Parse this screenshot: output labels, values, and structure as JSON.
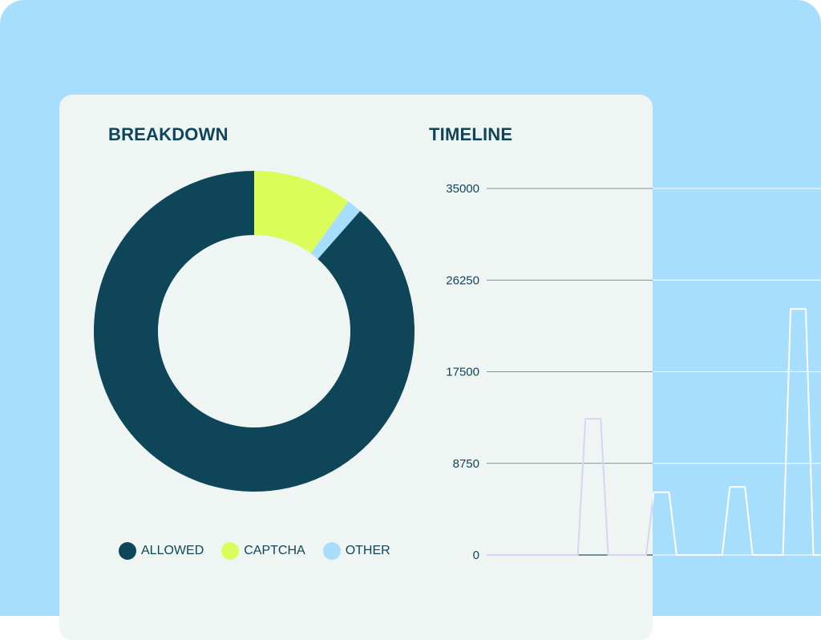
{
  "colors": {
    "frame_bg": "#a7defd",
    "card_bg": "#eff5f3",
    "dark": "#0f4559",
    "allowed": "#0f4559",
    "captcha": "#dbfd5a",
    "other": "#a7defd",
    "line_on_card": "#d9d3f5",
    "line_on_bg": "#ffffff"
  },
  "breakdown": {
    "title": "BREAKDOWN"
  },
  "timeline": {
    "title": "TIMELINE"
  },
  "chart_data": [
    {
      "type": "pie",
      "title": "BREAKDOWN",
      "donut": true,
      "labels": [
        "ALLOWED",
        "CAPTCHA",
        "OTHER"
      ],
      "values": [
        88.5,
        10.0,
        1.5
      ],
      "colors": [
        "#0f4559",
        "#dbfd5a",
        "#a7defd"
      ],
      "legend_position": "bottom"
    },
    {
      "type": "line",
      "title": "TIMELINE",
      "ylim": [
        0,
        35000
      ],
      "yticks": [
        0,
        8750,
        17500,
        26250,
        35000
      ],
      "ytick_labels": [
        "0",
        "8750",
        "17500",
        "26250",
        "35000"
      ],
      "grid": true,
      "x": [
        0,
        6,
        6.5,
        7,
        7.5,
        8,
        10.5,
        11,
        11.5,
        12,
        12.5,
        15.5,
        16,
        16.5,
        17,
        17.5,
        19.5,
        20,
        20.5,
        21,
        21.5,
        22
      ],
      "series": [
        {
          "values": [
            0,
            0,
            13000,
            13000,
            13000,
            0,
            0,
            6000,
            6000,
            6000,
            0,
            0,
            6500,
            6500,
            6500,
            0,
            0,
            23500,
            23500,
            23500,
            0,
            0
          ]
        }
      ]
    }
  ]
}
